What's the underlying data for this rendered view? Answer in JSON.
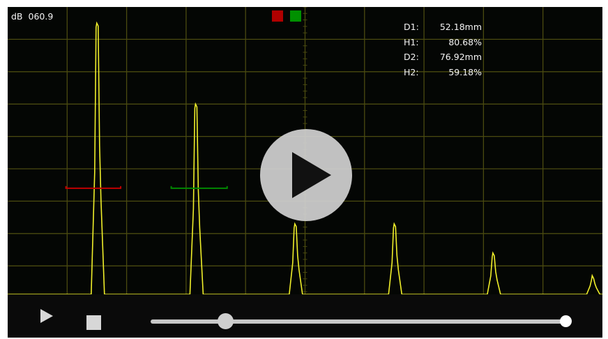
{
  "gain": {
    "unit": "dB",
    "value": "060.9"
  },
  "gate_indicators": [
    {
      "name": "gate-a",
      "color": "#b00000"
    },
    {
      "name": "gate-b",
      "color": "#009000"
    }
  ],
  "measurements": [
    {
      "label": "D1:",
      "value": "52.18mm"
    },
    {
      "label": "H1:",
      "value": "80.68%"
    },
    {
      "label": "D2:",
      "value": "76.92mm"
    },
    {
      "label": "H2:",
      "value": "59.18%"
    }
  ],
  "colors": {
    "screen_bg": "#040604",
    "grid": "#4a4a10",
    "trace": "#f0ef2a",
    "gate1": "#c00000",
    "gate2": "#008800"
  },
  "echoes": [
    {
      "position": 0.151,
      "height": 0.95
    },
    {
      "position": 0.317,
      "height": 0.7
    },
    {
      "position": 0.484,
      "height": 0.33
    },
    {
      "position": 0.651,
      "height": 0.33
    },
    {
      "position": 0.817,
      "height": 0.24
    },
    {
      "position": 0.984,
      "height": 0.17
    }
  ],
  "gates": [
    {
      "name": "gate-1",
      "start": 0.098,
      "end": 0.19,
      "level": 0.44
    },
    {
      "name": "gate-2",
      "start": 0.275,
      "end": 0.369,
      "level": 0.44
    }
  ],
  "player": {
    "overlay_icon": "play-icon",
    "play_icon": "play-icon",
    "stop_icon": "stop-icon",
    "progress": 0.18,
    "volume_handle": 1.0
  }
}
